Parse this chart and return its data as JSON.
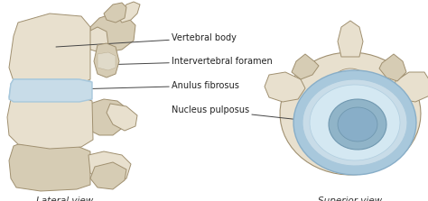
{
  "background_color": "#ffffff",
  "lateral_view_label": "Lateral view",
  "superior_view_label": "Superior view",
  "labels": {
    "vertebral_body": "Vertebral body",
    "intervertebral_foramen": "Intervertebral foramen",
    "anulus_fibrosus": "Anulus fibrosus",
    "nucleus_pulposus": "Nucleus pulposus"
  },
  "bone_color_light": "#e8e0ce",
  "bone_color_mid": "#d6ccb4",
  "bone_color_dark": "#c4b89a",
  "bone_edge": "#a09070",
  "disc_blue_light": "#c8dce8",
  "disc_blue_mid": "#a8c8dc",
  "disc_blue_dark": "#88aec8",
  "nucleus_dark": "#7098b0",
  "nucleus_mid": "#90b4c8",
  "white_color": "#f0f0f0",
  "label_fontsize": 7.0,
  "view_label_fontsize": 7.5,
  "line_color": "#444444",
  "fig_width": 4.74,
  "fig_height": 2.23,
  "dpi": 100
}
